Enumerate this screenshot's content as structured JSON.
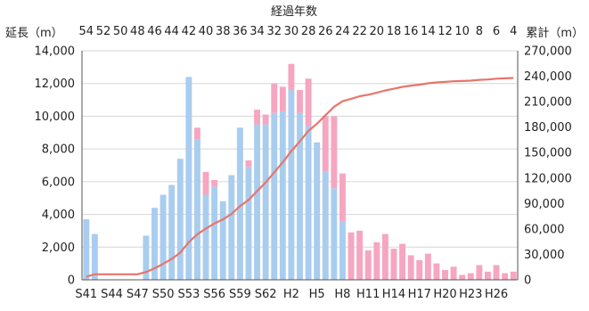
{
  "chart_data": {
    "type": "bar",
    "title": "経過年数",
    "ylabel_left": "延長（m）",
    "ylabel_right": "累計（m）",
    "ylim": [
      0,
      14000
    ],
    "ylim_right": [
      0,
      270000
    ],
    "yticks_left": [
      "0",
      "2,000",
      "4,000",
      "6,000",
      "8,000",
      "10,000",
      "12,000",
      "14,000"
    ],
    "yticks_right": [
      "0",
      "30,000",
      "60,000",
      "90,000",
      "120,000",
      "150,000",
      "180,000",
      "210,000",
      "240,000",
      "270,000"
    ],
    "top_axis_labels": [
      "54",
      "52",
      "50",
      "48",
      "46",
      "44",
      "42",
      "40",
      "38",
      "36",
      "34",
      "32",
      "30",
      "28",
      "26",
      "24",
      "22",
      "20",
      "18",
      "16",
      "14",
      "12",
      "10",
      "8",
      "6",
      "4"
    ],
    "bottom_axis_labels": [
      "S41",
      "S44",
      "S47",
      "S50",
      "S53",
      "S56",
      "S59",
      "S62",
      "H2",
      "H5",
      "H8",
      "H11",
      "H14",
      "H17",
      "H20",
      "H23",
      "H26"
    ],
    "categories": [
      "S41",
      "S42",
      "S43",
      "S44",
      "S45",
      "S46",
      "S47",
      "S48",
      "S49",
      "S50",
      "S51",
      "S52",
      "S53",
      "S54",
      "S55",
      "S56",
      "S57",
      "S58",
      "S59",
      "S60",
      "S61",
      "S62",
      "S63",
      "H1",
      "H2",
      "H3",
      "H4",
      "H5",
      "H6",
      "H7",
      "H8",
      "H9",
      "H10",
      "H11",
      "H12",
      "H13",
      "H14",
      "H15",
      "H16",
      "H17",
      "H18",
      "H19",
      "H20",
      "H21",
      "H22",
      "H23",
      "H24",
      "H25",
      "H26",
      "H27",
      "H28"
    ],
    "series": [
      {
        "color": "#a9cdef",
        "values": [
          3700,
          2800,
          0,
          0,
          0,
          0,
          0,
          2700,
          4400,
          5200,
          5800,
          7400,
          12400,
          8600,
          5200,
          5700,
          4800,
          6400,
          9300,
          6900,
          9500,
          9500,
          10200,
          10300,
          11600,
          10200,
          9400,
          8400,
          6600,
          5600,
          3600,
          0,
          0,
          0,
          0,
          0,
          0,
          0,
          0,
          0,
          0,
          0,
          0,
          0,
          0,
          0,
          0,
          0,
          0,
          0,
          0
        ]
      },
      {
        "color": "#f6a6c0",
        "values": [
          0,
          0,
          0,
          0,
          0,
          0,
          0,
          0,
          0,
          0,
          0,
          0,
          0,
          700,
          1400,
          400,
          0,
          0,
          0,
          400,
          900,
          600,
          1800,
          1500,
          1600,
          1400,
          2900,
          0,
          3400,
          4400,
          2900,
          2900,
          3000,
          1800,
          2300,
          2800,
          1900,
          2200,
          1500,
          1200,
          1600,
          1000,
          600,
          800,
          300,
          400,
          900,
          500,
          900,
          400,
          500
        ]
      }
    ],
    "cumulative": {
      "color": "#e8756a",
      "values": [
        3700,
        6500,
        6500,
        6500,
        6500,
        6500,
        6500,
        9200,
        13600,
        18800,
        24600,
        32000,
        44400,
        53700,
        60300,
        66400,
        71200,
        77600,
        86900,
        94200,
        104600,
        114700,
        126700,
        138500,
        151700,
        163300,
        175600,
        184000,
        194000,
        204000,
        210500,
        213400,
        216400,
        218200,
        220500,
        223300,
        225200,
        227400,
        228900,
        230100,
        231700,
        232700,
        233300,
        234100,
        234400,
        234800,
        235700,
        236200,
        237100,
        237500,
        238000
      ]
    }
  }
}
